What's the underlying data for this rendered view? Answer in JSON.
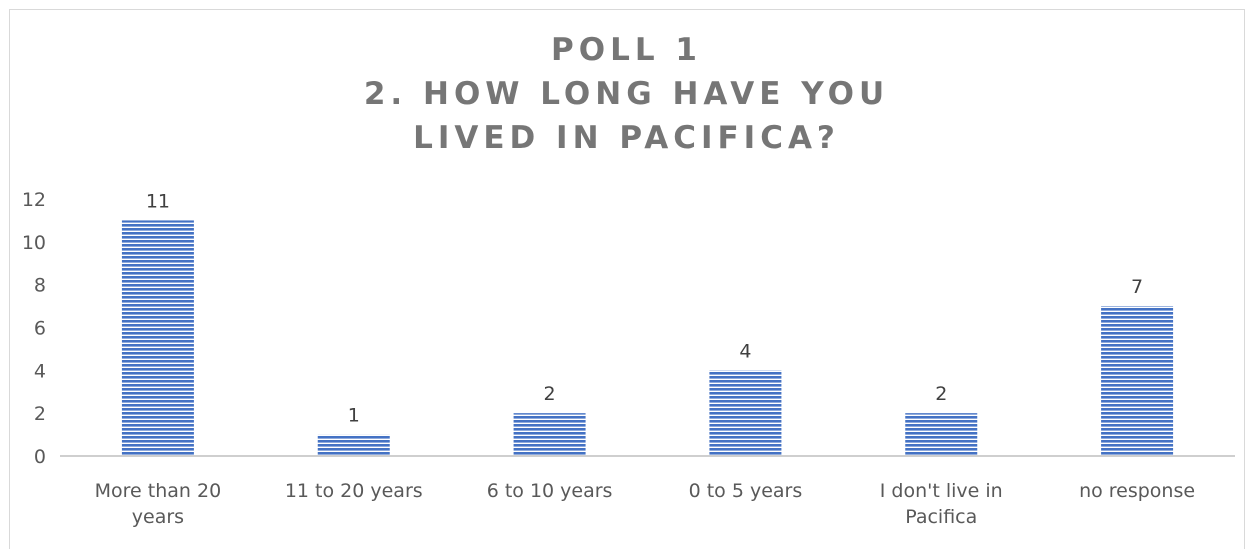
{
  "chart_data": {
    "type": "bar",
    "title_lines": [
      "POLL 1",
      "2. HOW LONG HAVE YOU",
      "LIVED IN PACIFICA?"
    ],
    "categories": [
      [
        "More than 20",
        "years"
      ],
      [
        "11 to 20 years"
      ],
      [
        "6 to 10 years"
      ],
      [
        "0 to 5 years"
      ],
      [
        "I don't live in",
        "Pacifica"
      ],
      [
        "no response"
      ]
    ],
    "values": [
      11,
      1,
      2,
      4,
      2,
      7
    ],
    "ylim": [
      0,
      12
    ],
    "yticks": [
      0,
      2,
      4,
      6,
      8,
      10,
      12
    ],
    "grid": false,
    "legend": "none",
    "colors": {
      "bar": "#4472c4",
      "bar_stripe": "#ffffff",
      "axis": "#bfbfbf"
    }
  }
}
